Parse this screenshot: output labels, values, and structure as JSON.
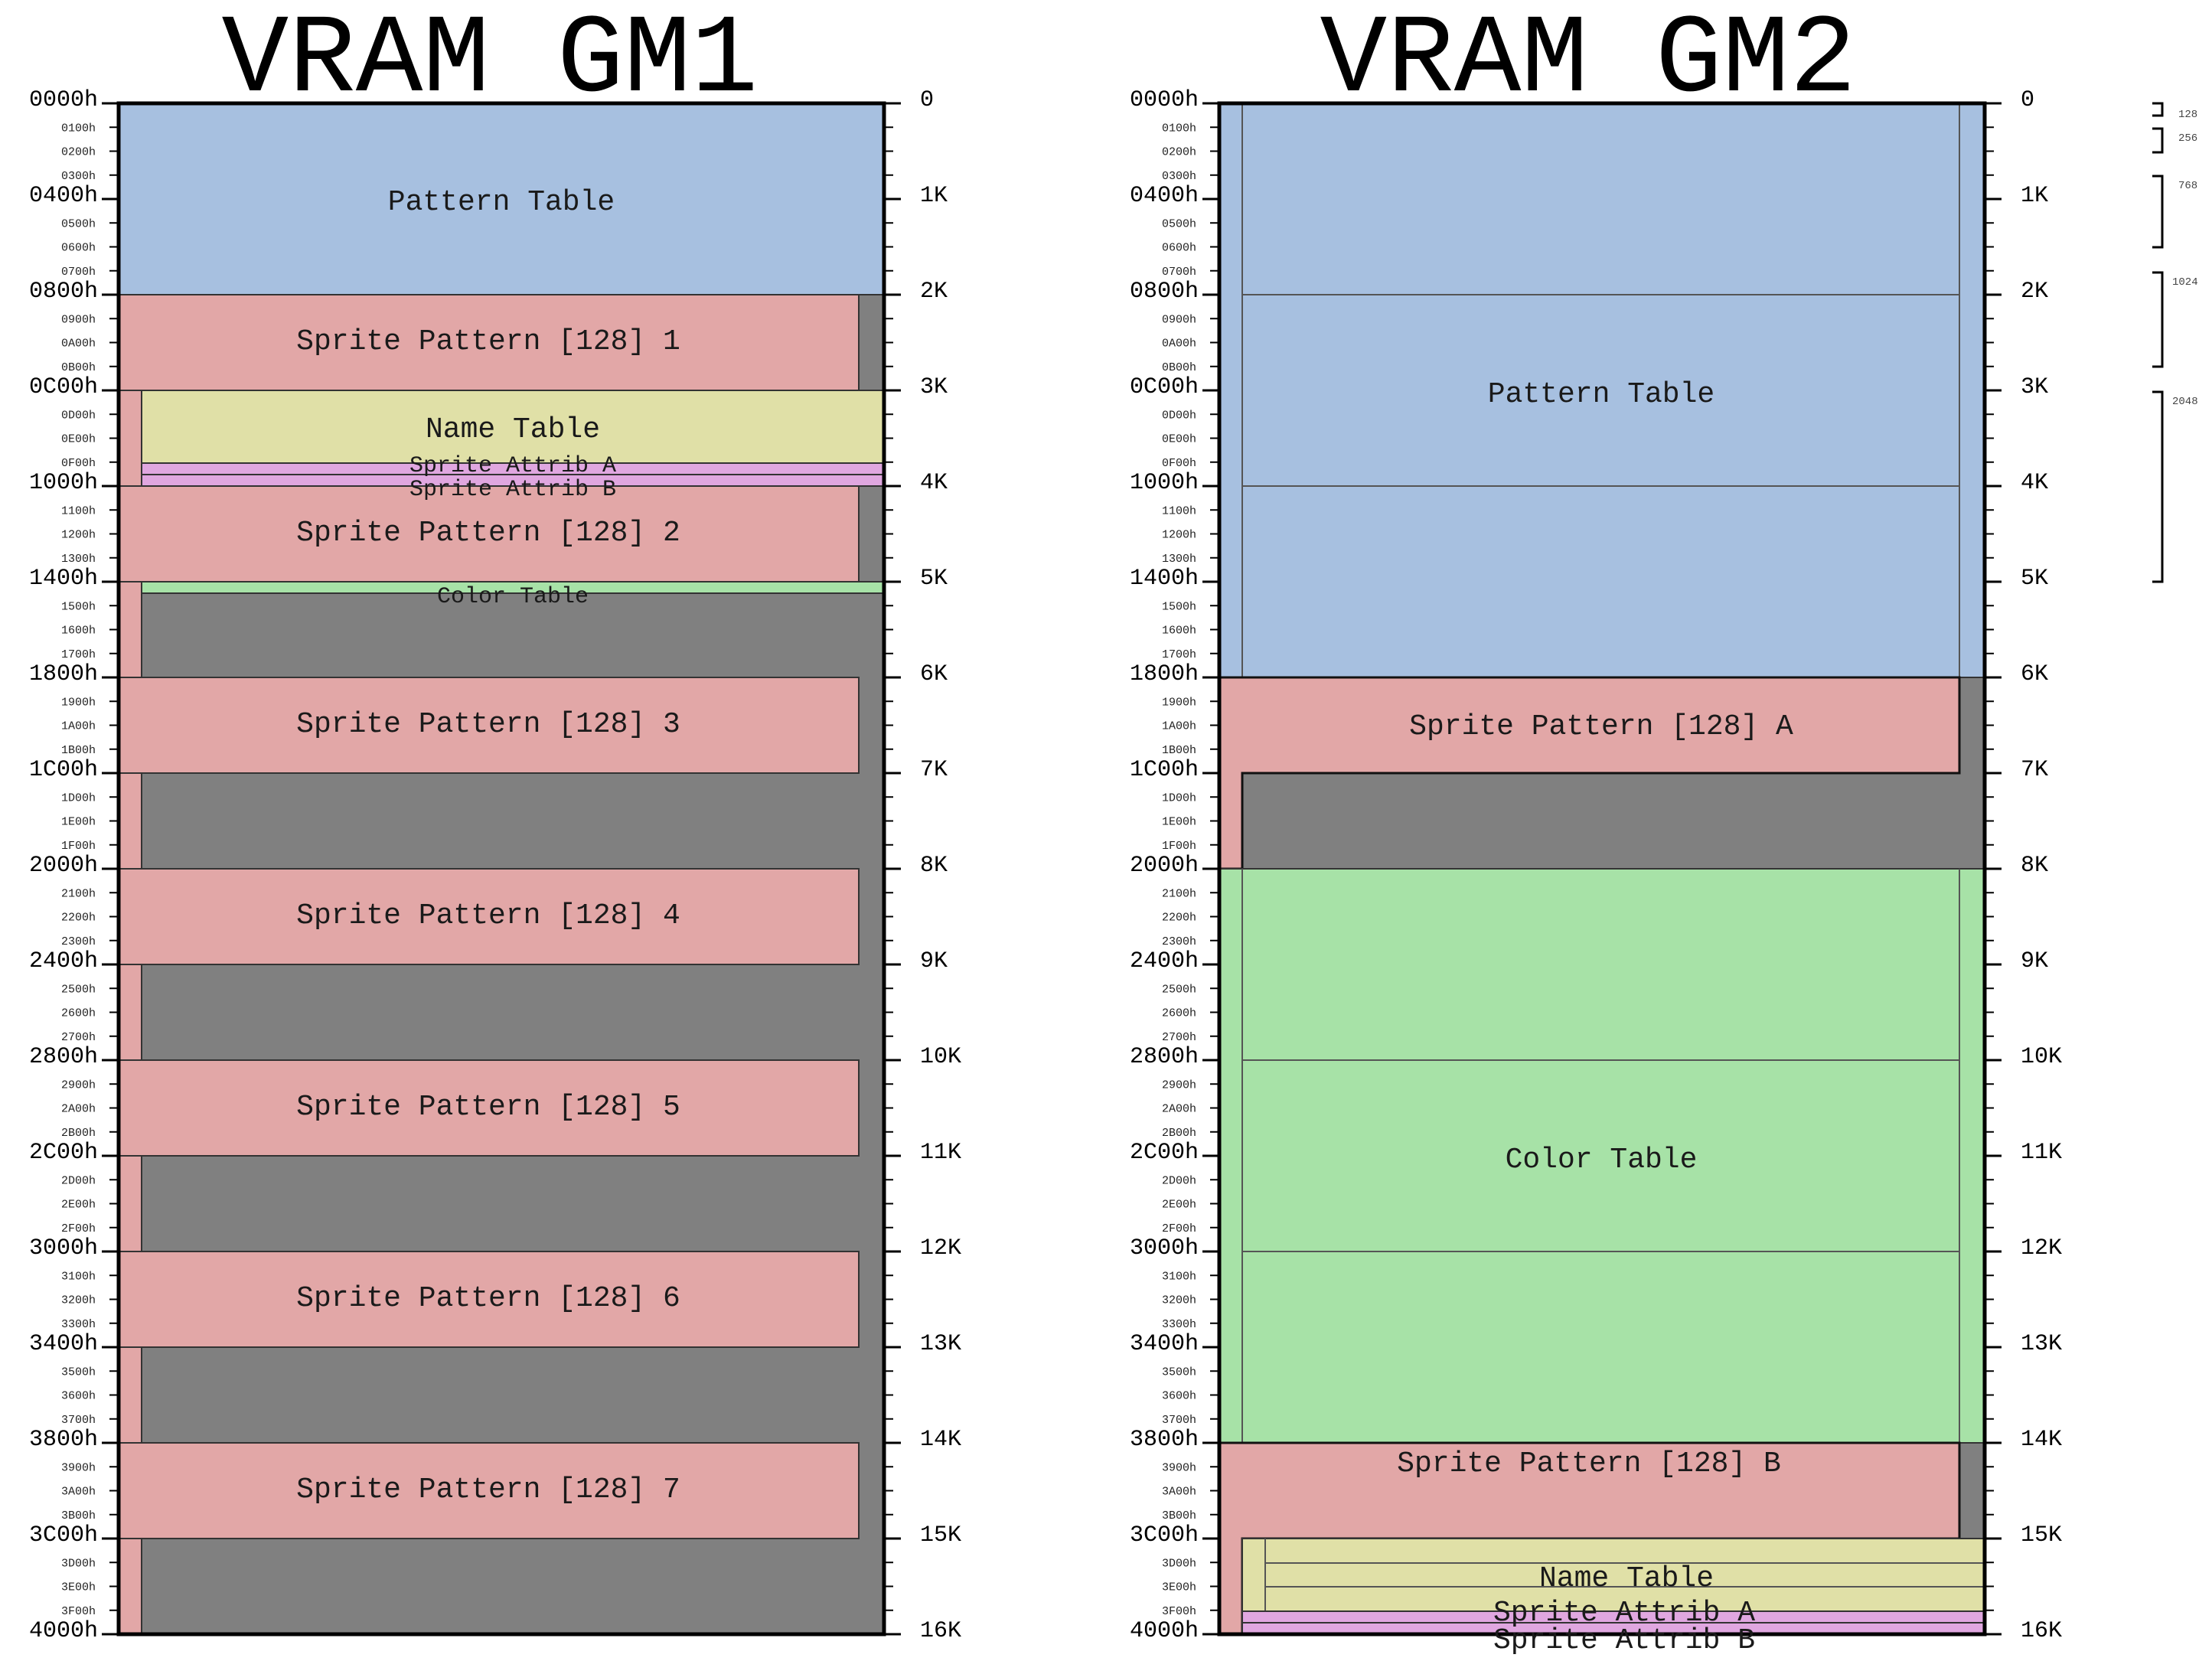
{
  "gm1": {
    "title": "VRAM GM1",
    "regions": {
      "pattern_table": "Pattern Table",
      "sprite_1": "Sprite Pattern [128] 1",
      "name_table": "Name Table",
      "sprite_attrib_a": "Sprite Attrib A",
      "sprite_attrib_b": "Sprite Attrib B",
      "sprite_2": "Sprite Pattern [128] 2",
      "color_table": "Color Table",
      "sprite_3": "Sprite Pattern [128] 3",
      "sprite_4": "Sprite Pattern [128] 4",
      "sprite_5": "Sprite Pattern [128] 5",
      "sprite_6": "Sprite Pattern [128] 6",
      "sprite_7": "Sprite Pattern [128] 7"
    }
  },
  "gm2": {
    "title": "VRAM GM2",
    "regions": {
      "pattern_table": "Pattern Table",
      "sprite_a": "Sprite Pattern [128] A",
      "color_table": "Color Table",
      "sprite_b": "Sprite Pattern [128] B",
      "name_table": "Name Table",
      "sprite_attrib_a": "Sprite Attrib A",
      "sprite_attrib_b": "Sprite Attrib B"
    }
  },
  "address_labels": [
    "0000h",
    "0400h",
    "0800h",
    "0C00h",
    "1000h",
    "1400h",
    "1800h",
    "1C00h",
    "2000h",
    "2400h",
    "2800h",
    "2C00h",
    "3000h",
    "3400h",
    "3800h",
    "3C00h",
    "4000h"
  ],
  "minor_address_labels": [
    "0100h",
    "0200h",
    "0300h",
    "0500h",
    "0600h",
    "0700h",
    "0900h",
    "0A00h",
    "0B00h",
    "0D00h",
    "0E00h",
    "0F00h",
    "1100h",
    "1200h",
    "1300h",
    "1500h",
    "1600h",
    "1700h",
    "1900h",
    "1A00h",
    "1B00h",
    "1D00h",
    "1E00h",
    "1F00h",
    "2100h",
    "2200h",
    "2300h",
    "2500h",
    "2600h",
    "2700h",
    "2900h",
    "2A00h",
    "2B00h",
    "2D00h",
    "2E00h",
    "2F00h",
    "3100h",
    "3200h",
    "3300h",
    "3500h",
    "3600h",
    "3700h",
    "3900h",
    "3A00h",
    "3B00h",
    "3D00h",
    "3E00h",
    "3F00h"
  ],
  "size_labels": [
    "0",
    "1K",
    "2K",
    "3K",
    "4K",
    "5K",
    "6K",
    "7K",
    "8K",
    "9K",
    "10K",
    "11K",
    "12K",
    "13K",
    "14K",
    "15K",
    "16K"
  ],
  "legend": [
    "128",
    "256",
    "768",
    "1024",
    "2048"
  ],
  "colors": {
    "pattern": "#a7c0e0",
    "sprite": "#e2a7a7",
    "name": "#e0e0a7",
    "attrib": "#e0a7e0",
    "color": "#a7e2a7",
    "unused": "#808080"
  }
}
